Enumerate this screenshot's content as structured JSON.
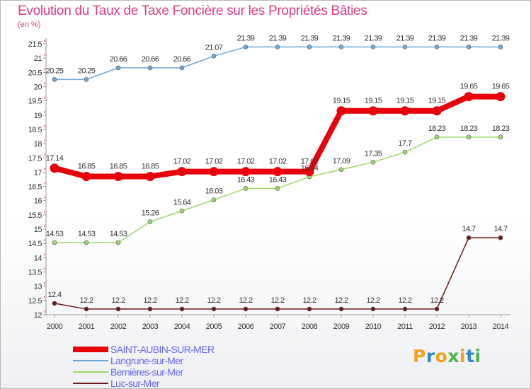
{
  "chart_data": {
    "type": "line",
    "title": "Evolution du Taux de Taxe Foncière sur les Propriétés Bâties",
    "ylabel": "(en %)",
    "xlabel": "",
    "ylim": [
      12,
      21.5
    ],
    "yticks": [
      "12",
      "12.5",
      "13",
      "13.5",
      "14",
      "14.5",
      "15",
      "15.5",
      "16",
      "16.5",
      "17",
      "17.5",
      "18",
      "18.5",
      "19",
      "19.5",
      "20",
      "20.5",
      "21",
      "21.5"
    ],
    "categories": [
      "2000",
      "2001",
      "2002",
      "2003",
      "2004",
      "2005",
      "2006",
      "2007",
      "2008",
      "2009",
      "2010",
      "2011",
      "2012",
      "2013",
      "2014"
    ],
    "series": [
      {
        "name": "Luc-sur-Mer",
        "color": "#6b1a1a",
        "values": [
          12.4,
          12.2,
          12.2,
          12.2,
          12.2,
          12.2,
          12.2,
          12.2,
          12.2,
          12.2,
          12.2,
          12.2,
          12.2,
          14.7,
          14.7
        ],
        "labels": [
          "12.4",
          "12.2",
          "12.2",
          "12.2",
          "12.2",
          "12.2",
          "12.2",
          "12.2",
          "12.2",
          "12.2",
          "12.2",
          "12.2",
          "12.2",
          "14.7",
          "14.7"
        ]
      },
      {
        "name": "Bernières-sur-Mer",
        "color": "#9ed86a",
        "values": [
          14.53,
          14.53,
          14.53,
          15.26,
          15.64,
          16.03,
          16.43,
          16.43,
          16.84,
          17.09,
          17.35,
          17.7,
          18.23,
          18.23,
          18.23
        ],
        "labels": [
          "14.53",
          "14.53",
          "14.53",
          "15.26",
          "15.64",
          "16.03",
          "16.43",
          "16.43",
          "16.84",
          "17.09",
          "17.35",
          "17.7",
          "18.23",
          "18.23",
          "18.23"
        ]
      },
      {
        "name": "Langrune-sur-Mer",
        "color": "#6ea8d6",
        "values": [
          20.25,
          20.25,
          20.66,
          20.66,
          20.66,
          21.07,
          21.39,
          21.39,
          21.39,
          21.39,
          21.39,
          21.39,
          21.39,
          21.39,
          21.39
        ],
        "labels": [
          "20.25",
          "20.25",
          "20.66",
          "20.66",
          "20.66",
          "21.07",
          "21.39",
          "21.39",
          "21.39",
          "21.39",
          "21.39",
          "21.39",
          "21.39",
          "21.39",
          "21.39"
        ]
      },
      {
        "name": "SAINT-AUBIN-SUR-MER",
        "color": "#e8000b",
        "values": [
          17.14,
          16.85,
          16.85,
          16.85,
          17.02,
          17.02,
          17.02,
          17.02,
          17.02,
          19.15,
          19.15,
          19.15,
          19.15,
          19.65,
          19.65
        ],
        "labels": [
          "17.14",
          "16.85",
          "16.85",
          "16.85",
          "17.02",
          "17.02",
          "17.02",
          "17.02",
          "17.02",
          "19.15",
          "19.15",
          "19.15",
          "19.15",
          "19.65",
          "19.65"
        ]
      }
    ],
    "legend": [
      {
        "name": "SAINT-AUBIN-SUR-MER",
        "color": "#e8000b",
        "text_color": "#6666ee"
      },
      {
        "name": "Langrune-sur-Mer",
        "color": "#6ea8d6",
        "text_color": "#6666ee"
      },
      {
        "name": "Bernières-sur-Mer",
        "color": "#9ed86a",
        "text_color": "#6666ee"
      },
      {
        "name": "Luc-sur-Mer",
        "color": "#6b1a1a",
        "text_color": "#6666ee"
      }
    ],
    "legend_position": "bottom-left",
    "grid": false
  },
  "brand": {
    "name": "Proxiti",
    "letters": [
      "P",
      "r",
      "o",
      "x",
      "i",
      "t",
      "i"
    ],
    "letter_colors": [
      "#f5a01a",
      "#2f86c8",
      "#f5a01a",
      "#4ab34a",
      "#f5a01a",
      "#2f86c8",
      "#4ab34a"
    ]
  }
}
